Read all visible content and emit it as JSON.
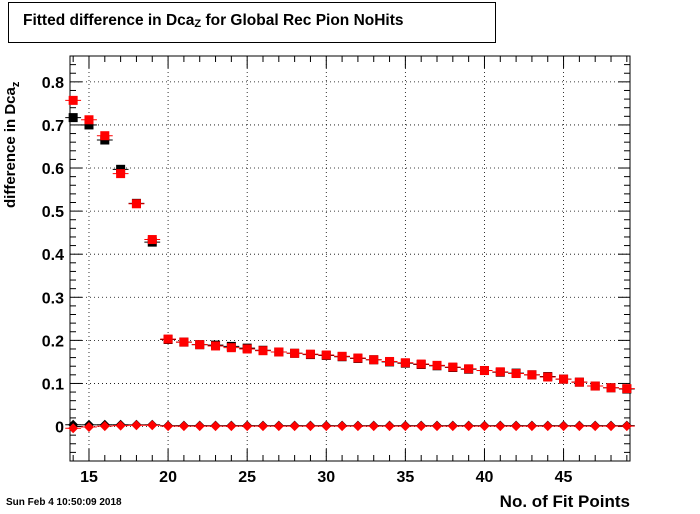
{
  "title": {
    "main": "Fitted difference in Dca",
    "sub": "Z",
    "rest": " for Global Rec Pion NoHits"
  },
  "ylabel": {
    "main": "difference in Dca",
    "sub": "z"
  },
  "xlabel": "No. of Fit Points",
  "datestamp": "Sun Feb  4 10:50:09 2018",
  "chart_data": {
    "type": "scatter",
    "xlim": [
      13.8,
      49.2
    ],
    "ylim": [
      -0.08,
      0.86
    ],
    "xticks": [
      15,
      20,
      25,
      30,
      35,
      40,
      45
    ],
    "xtick_labels": [
      "15",
      "20",
      "25",
      "30",
      "35",
      "40",
      "45"
    ],
    "yticks": [
      0,
      0.1,
      0.2,
      0.3,
      0.4,
      0.5,
      0.6,
      0.7,
      0.8
    ],
    "ytick_labels": [
      "0",
      "0.1",
      "0.2",
      "0.3",
      "0.4",
      "0.5",
      "0.6",
      "0.7",
      "0.8"
    ],
    "grid": true,
    "series": [
      {
        "marker": "square",
        "color": "#000000",
        "x": [
          14,
          15,
          16,
          17,
          18,
          19,
          20,
          21,
          22,
          23,
          24,
          25,
          26,
          27,
          28,
          29,
          30,
          31,
          32,
          33,
          34,
          35,
          36,
          37,
          38,
          39,
          40,
          41,
          42,
          43,
          44,
          45,
          46,
          47,
          48,
          49
        ],
        "y": [
          0.717,
          0.7,
          0.665,
          0.597,
          0.518,
          0.428,
          0.202,
          0.196,
          0.19,
          0.189,
          0.186,
          0.182,
          0.177,
          0.173,
          0.17,
          0.167,
          0.165,
          0.162,
          0.158,
          0.155,
          0.15,
          0.147,
          0.144,
          0.141,
          0.137,
          0.133,
          0.13,
          0.126,
          0.124,
          0.12,
          0.116,
          0.11,
          0.103,
          0.094,
          0.09,
          0.087
        ]
      },
      {
        "marker": "square",
        "color": "#ff0000",
        "x": [
          14,
          15,
          16,
          17,
          18,
          19,
          20,
          21,
          22,
          23,
          24,
          25,
          26,
          27,
          28,
          29,
          30,
          31,
          32,
          33,
          34,
          35,
          36,
          37,
          38,
          39,
          40,
          41,
          42,
          43,
          44,
          45,
          46,
          47,
          48,
          49
        ],
        "y": [
          0.757,
          0.712,
          0.675,
          0.587,
          0.517,
          0.434,
          0.203,
          0.196,
          0.19,
          0.187,
          0.183,
          0.18,
          0.176,
          0.173,
          0.17,
          0.168,
          0.166,
          0.163,
          0.159,
          0.155,
          0.151,
          0.148,
          0.145,
          0.142,
          0.138,
          0.134,
          0.13,
          0.127,
          0.123,
          0.12,
          0.115,
          0.11,
          0.103,
          0.094,
          0.09,
          0.088
        ]
      },
      {
        "marker": "diamond",
        "color": "#000000",
        "x": [
          14,
          15,
          16,
          17,
          18,
          19,
          20,
          21,
          22,
          23,
          24,
          25,
          26,
          27,
          28,
          29,
          30,
          31,
          32,
          33,
          34,
          35,
          36,
          37,
          38,
          39,
          40,
          41,
          42,
          43,
          44,
          45,
          46,
          47,
          48,
          49
        ],
        "y": [
          0.004,
          0.004,
          0.004,
          0.004,
          0.004,
          0.004,
          0.002,
          0.002,
          0.002,
          0.002,
          0.002,
          0.002,
          0.002,
          0.002,
          0.002,
          0.002,
          0.002,
          0.002,
          0.002,
          0.002,
          0.002,
          0.002,
          0.002,
          0.002,
          0.002,
          0.002,
          0.002,
          0.002,
          0.002,
          0.002,
          0.002,
          0.002,
          0.002,
          0.002,
          0.002,
          0.002
        ]
      },
      {
        "marker": "diamond",
        "color": "#ff0000",
        "x": [
          14,
          15,
          16,
          17,
          18,
          19,
          20,
          21,
          22,
          23,
          24,
          25,
          26,
          27,
          28,
          29,
          30,
          31,
          32,
          33,
          34,
          35,
          36,
          37,
          38,
          39,
          40,
          41,
          42,
          43,
          44,
          45,
          46,
          47,
          48,
          49
        ],
        "y": [
          -0.004,
          -0.001,
          0.001,
          0.002,
          0.003,
          0.003,
          0.001,
          0.001,
          0.001,
          0.001,
          0.001,
          0.001,
          0.001,
          0.001,
          0.001,
          0.001,
          0.001,
          0.001,
          0.001,
          0.001,
          0.001,
          0.001,
          0.001,
          0.001,
          0.001,
          0.001,
          0.001,
          0.001,
          0.001,
          0.001,
          0.001,
          0.001,
          0.001,
          0.001,
          0.001,
          0.001
        ]
      }
    ]
  }
}
